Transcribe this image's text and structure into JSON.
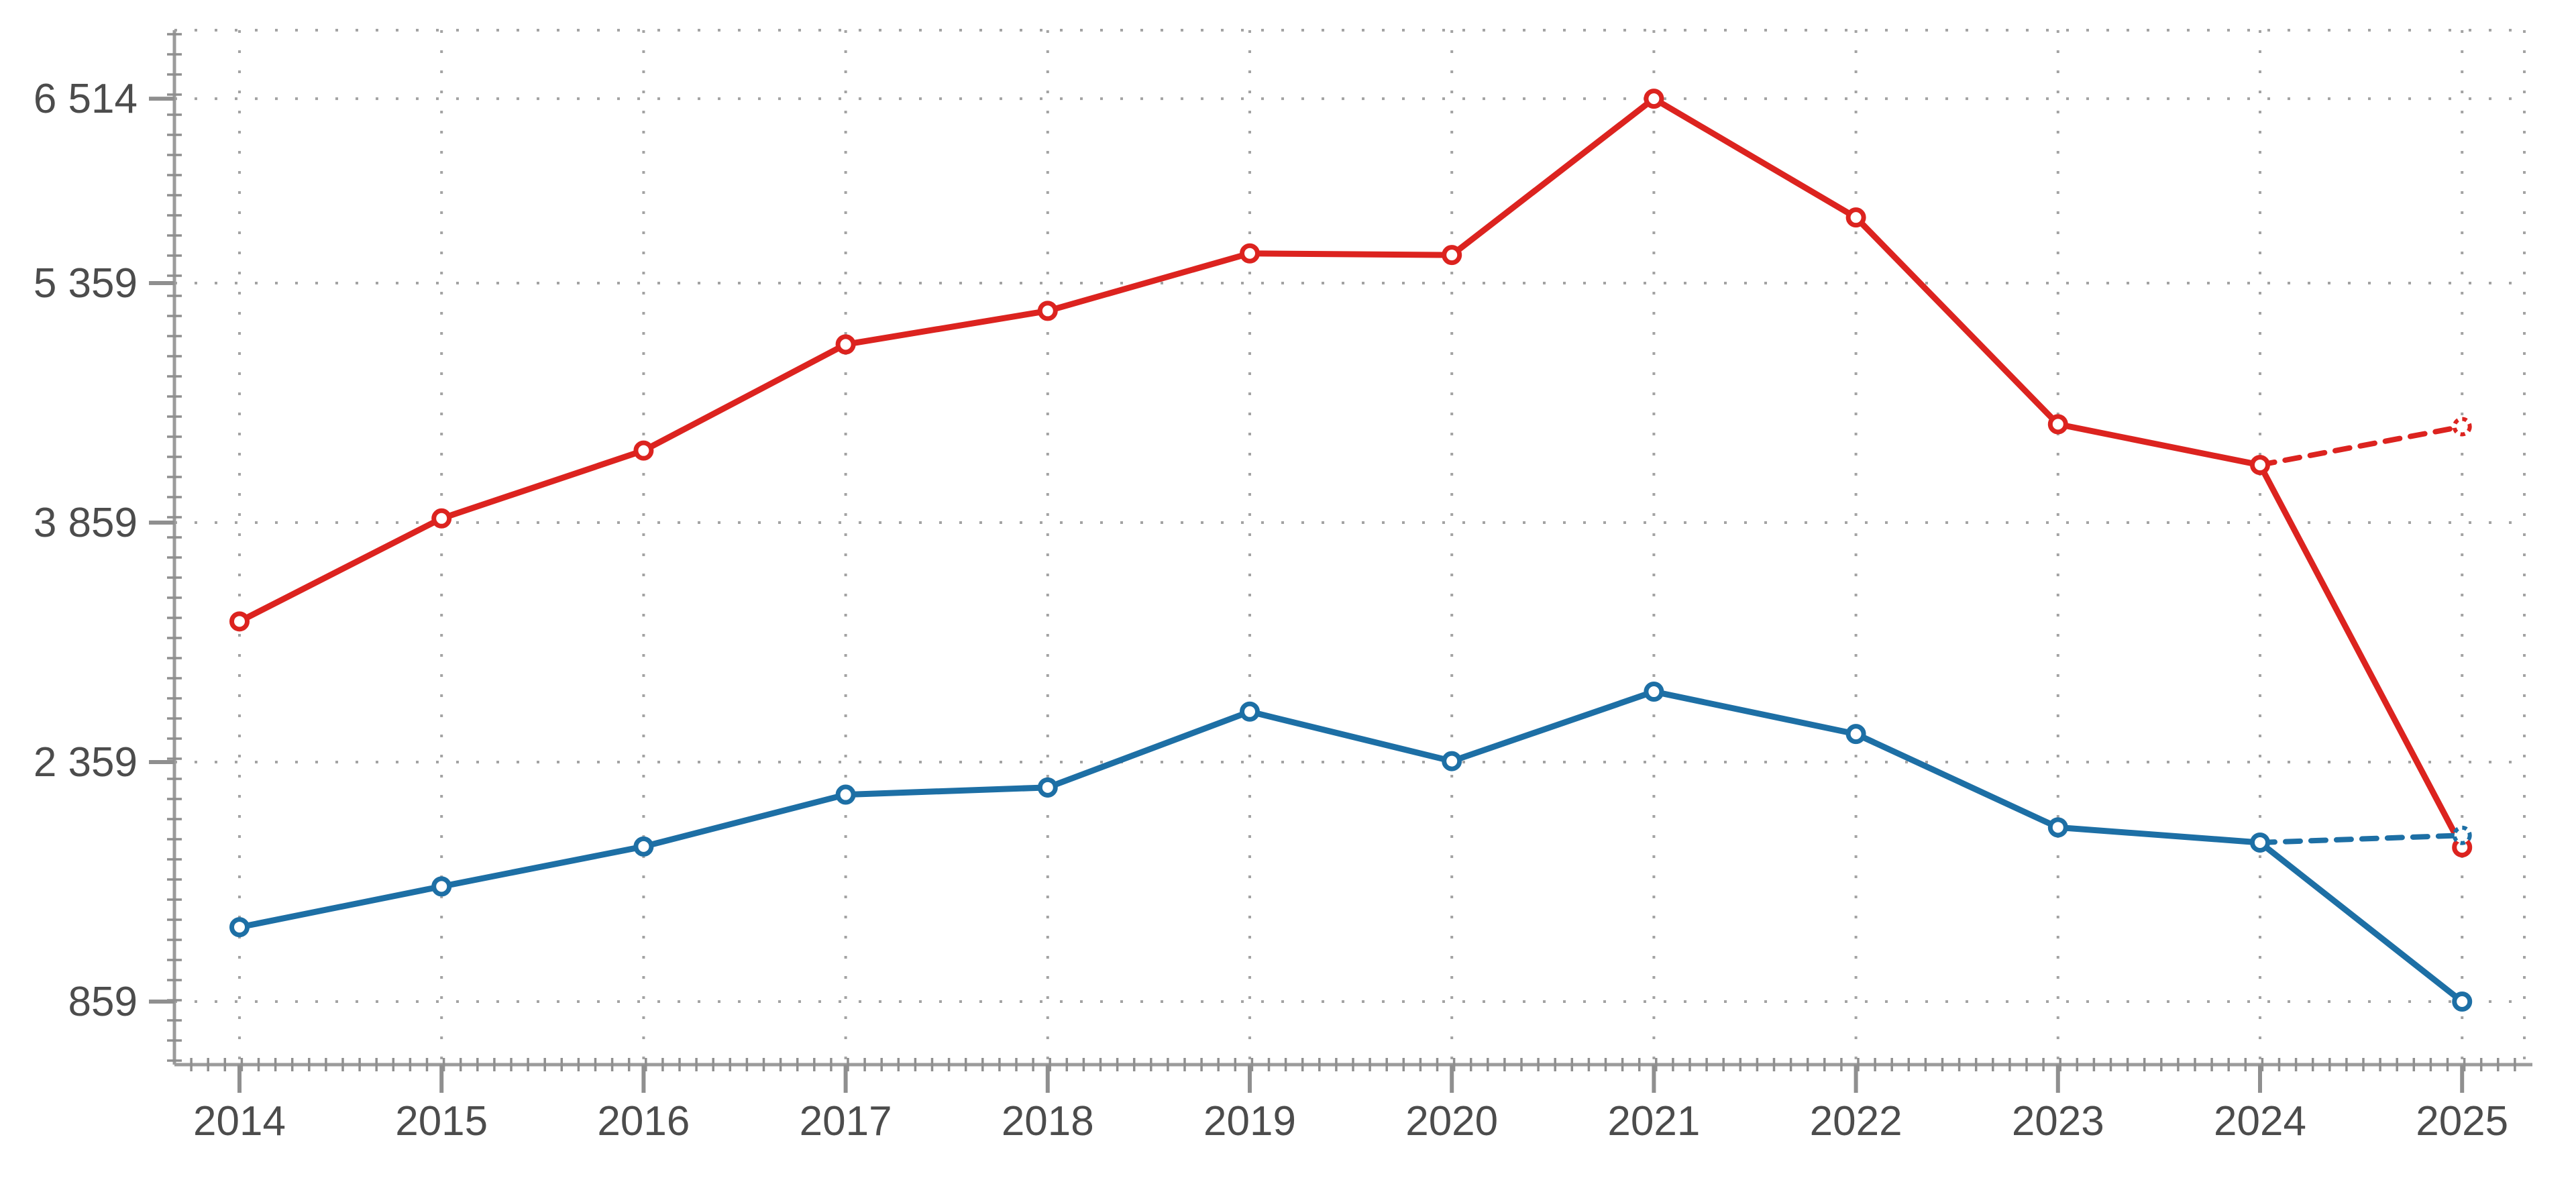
{
  "chart_data": {
    "type": "line",
    "x": [
      2014,
      2015,
      2016,
      2017,
      2018,
      2019,
      2020,
      2021,
      2022,
      2023,
      2024,
      2025
    ],
    "x_tick_labels": [
      "2014",
      "2015",
      "2016",
      "2017",
      "2018",
      "2019",
      "2020",
      "2021",
      "2022",
      "2023",
      "2024",
      "2025"
    ],
    "y_ticks": {
      "values": [
        859,
        2359,
        3859,
        5359,
        6514
      ],
      "labels": [
        "859",
        "2 359",
        "3 859",
        "5 359",
        "6 514"
      ]
    },
    "series": [
      {
        "name": "series-red",
        "color": "#dc231f",
        "values": [
          3240,
          3885,
          4310,
          4975,
          5185,
          5545,
          5535,
          6514,
          5770,
          4475,
          4220,
          1825
        ],
        "forecast": {
          "x": [
            2024,
            2025
          ],
          "values": [
            4220,
            4460
          ],
          "style": "dashed"
        }
      },
      {
        "name": "series-blue",
        "color": "#1d6fa5",
        "values": [
          1325,
          1580,
          1830,
          2155,
          2200,
          2675,
          2365,
          2800,
          2535,
          1950,
          1855,
          859
        ],
        "forecast": {
          "x": [
            2024,
            2025
          ],
          "values": [
            1855,
            1900
          ],
          "style": "dashed"
        }
      }
    ],
    "title": "",
    "xlabel": "",
    "ylabel": "",
    "ylim": [
      470,
      6950
    ],
    "grid": "dotted",
    "legend": "none",
    "marker": "open-circle"
  },
  "colors": {
    "series_red": "#dc231f",
    "series_blue": "#1d6fa5",
    "gridline": "#a3a3a3",
    "axis_line": "#9b9b9b",
    "tick_mark": "#8f8f8f",
    "tick_label": "#4c4c4c",
    "background": "#ffffff",
    "marker_fill": "#ffffff"
  }
}
